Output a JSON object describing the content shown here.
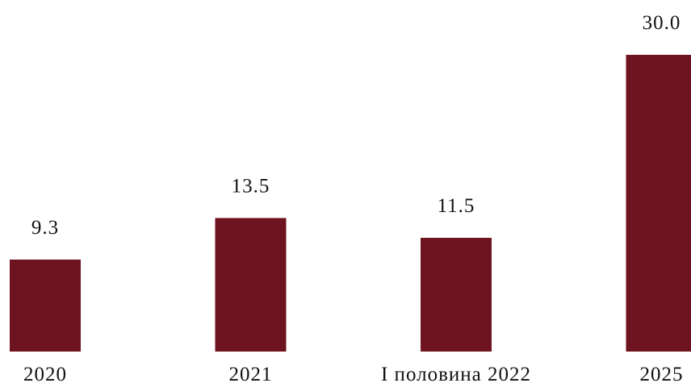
{
  "chart_data": {
    "type": "bar",
    "categories": [
      "2020",
      "2021",
      "I половина 2022",
      "2025"
    ],
    "values": [
      9.3,
      13.5,
      11.5,
      30.0
    ],
    "value_labels": [
      "9.3",
      "13.5",
      "11.5",
      "30.0"
    ],
    "color": "#6e1421"
  }
}
